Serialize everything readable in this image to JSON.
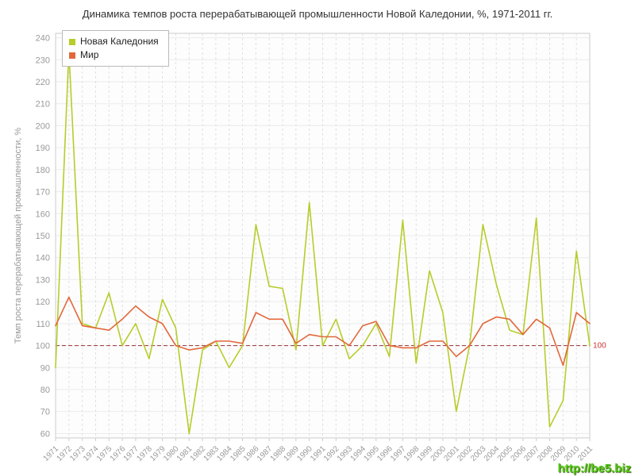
{
  "title": "Динамика темпов роста перерабатывающей промышленности Новой Каледонии, %, 1971-2011 гг.",
  "watermark": "http://be5.biz",
  "chart_data": {
    "type": "line",
    "x": [
      1971,
      1972,
      1973,
      1974,
      1975,
      1976,
      1977,
      1978,
      1979,
      1980,
      1981,
      1982,
      1983,
      1984,
      1985,
      1986,
      1987,
      1988,
      1989,
      1990,
      1991,
      1992,
      1993,
      1994,
      1995,
      1996,
      1997,
      1998,
      1999,
      2000,
      2001,
      2002,
      2003,
      2004,
      2005,
      2006,
      2007,
      2008,
      2009,
      2010,
      2011
    ],
    "series": [
      {
        "name": "Новая Каледония",
        "color": "#b8cc2a",
        "values": [
          90,
          234,
          110,
          108,
          124,
          100,
          110,
          94,
          121,
          108,
          60,
          98,
          102,
          90,
          100,
          155,
          127,
          126,
          98,
          165,
          100,
          112,
          94,
          100,
          110,
          95,
          157,
          92,
          134,
          115,
          70,
          100,
          155,
          128,
          107,
          105,
          158,
          63,
          75,
          143,
          100
        ]
      },
      {
        "name": "Мир",
        "color": "#e2683b",
        "values": [
          109,
          122,
          109,
          108,
          107,
          112,
          118,
          113,
          110,
          100,
          98,
          99,
          102,
          102,
          101,
          115,
          112,
          112,
          101,
          105,
          104,
          104,
          100,
          109,
          111,
          100,
          99,
          99,
          102,
          102,
          95,
          100,
          110,
          113,
          112,
          105,
          112,
          108,
          91,
          115,
          110
        ]
      }
    ],
    "xlabel": "",
    "ylabel": "Темп роста перерабатывающей промышленности, %",
    "ylim": [
      60,
      240
    ],
    "ytick_step": 10,
    "grid": true,
    "legend_position": "top-left",
    "reference_line": {
      "value": 100,
      "label": "100",
      "color": "#993333"
    }
  }
}
